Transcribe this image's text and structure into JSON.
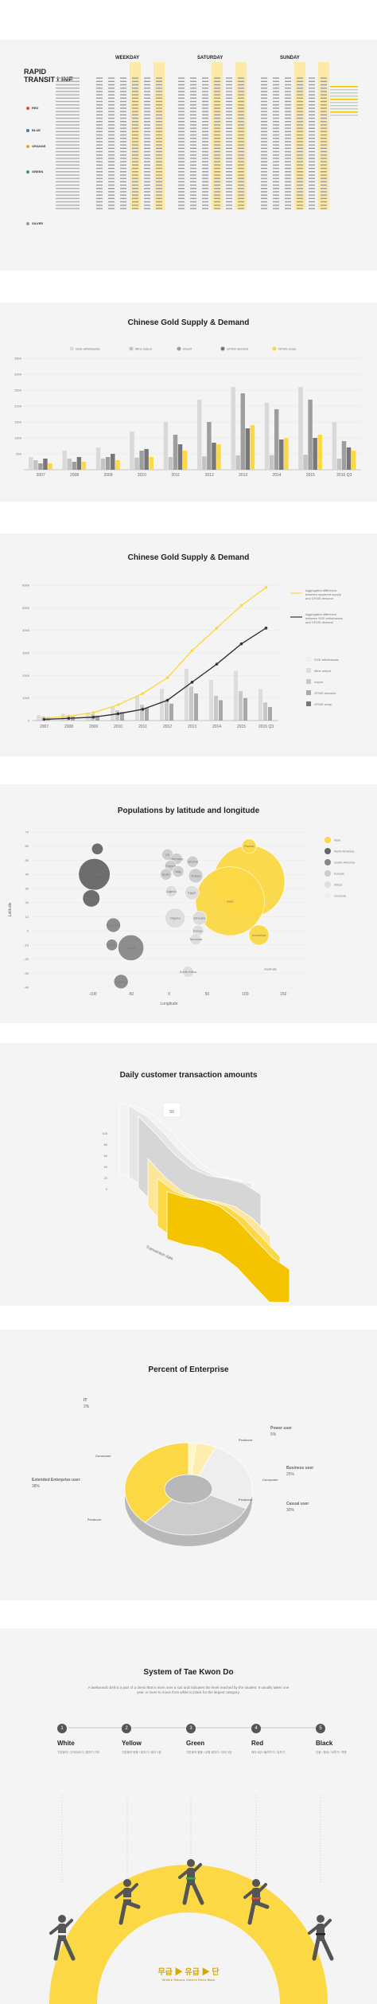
{
  "transit": {
    "title_line1": "RAPID",
    "title_line2": "TRANSIT LINE",
    "day_headers": [
      "WEEKDAY",
      "SATURDAY",
      "SUNDAY"
    ],
    "lines": [
      {
        "name": "RED",
        "color": "#e8453c"
      },
      {
        "name": "BLUE",
        "color": "#3a7bd5"
      },
      {
        "name": "ORANGE",
        "color": "#f0a030"
      },
      {
        "name": "GREEN",
        "color": "#3aa35a"
      },
      {
        "name": "SILVER",
        "color": "#999999"
      }
    ],
    "colors": {
      "highlight": "#fde9a8",
      "accent": "#f7c600"
    }
  },
  "chart1": {
    "title": "Chinese Gold Supply & Demand",
    "chart_data": {
      "type": "bar",
      "categories": [
        "2007",
        "2008",
        "2009",
        "2010",
        "2011",
        "2012",
        "2013",
        "2014",
        "2015",
        "2016 Q3"
      ],
      "ylim": [
        0,
        3500
      ],
      "yticks": [
        "3500",
        "3000",
        "2500",
        "2000",
        "1500",
        "1000",
        "500"
      ],
      "legend": [
        "SGE withdrawals",
        "Mine output",
        "Import",
        "GFMS demand",
        "GFMS scrap"
      ],
      "colors": [
        "#d9d9d9",
        "#c4c4c4",
        "#9e9e9e",
        "#777777",
        "#fcd844"
      ],
      "series": [
        {
          "name": "SGE withdrawals",
          "values": [
            400,
            600,
            700,
            1200,
            1500,
            2200,
            2600,
            2100,
            2600,
            1500
          ]
        },
        {
          "name": "Mine output",
          "values": [
            300,
            350,
            350,
            380,
            400,
            420,
            450,
            460,
            470,
            350
          ]
        },
        {
          "name": "Import",
          "values": [
            200,
            250,
            400,
            600,
            1100,
            1500,
            2400,
            1900,
            2200,
            900
          ]
        },
        {
          "name": "GFMS demand",
          "values": [
            350,
            400,
            500,
            650,
            800,
            850,
            1300,
            950,
            1000,
            700
          ]
        },
        {
          "name": "GFMS scrap",
          "values": [
            200,
            250,
            300,
            400,
            600,
            800,
            1400,
            1000,
            1100,
            600
          ]
        }
      ]
    }
  },
  "chart2": {
    "title": "Chinese Gold Supply & Demand",
    "chart_data": {
      "type": "line",
      "categories": [
        "2007",
        "2008",
        "2009",
        "2010",
        "2011",
        "2012",
        "2013",
        "2014",
        "2015",
        "2016 Q3"
      ],
      "ylim": [
        0,
        6000
      ],
      "yticks": [
        "6000",
        "5000",
        "4000",
        "3000",
        "2000",
        "1000",
        "0"
      ],
      "annotations": [
        "Aggregated difference between apparent supply and GFMS demand",
        "Aggregated difference between SGE withdrawals and GFMS demand"
      ],
      "legend": [
        "SGE withdrawals",
        "Mine output",
        "Import",
        "GFMS demand",
        "GFMS scrap"
      ],
      "series": [
        {
          "values": [
            100,
            200,
            350,
            700,
            1200,
            1900,
            3100,
            4100,
            5100,
            5900
          ]
        },
        {
          "values": [
            50,
            100,
            150,
            300,
            500,
            900,
            1700,
            2500,
            3400,
            4100
          ]
        }
      ],
      "bars": [
        {
          "values": [
            250,
            300,
            350,
            600,
            1100,
            1400,
            2300,
            1800,
            2200,
            1400
          ]
        },
        {
          "values": [
            180,
            220,
            280,
            450,
            700,
            900,
            1500,
            1100,
            1300,
            800
          ]
        },
        {
          "values": [
            150,
            180,
            220,
            380,
            550,
            750,
            1200,
            900,
            1000,
            600
          ]
        }
      ]
    }
  },
  "chart3": {
    "title": "Populations by latitude and longitude",
    "chart_data": {
      "type": "scatter",
      "xlim": [
        -180,
        180
      ],
      "ylim": [
        -40,
        70
      ],
      "xticks": [
        "-100",
        "-50",
        "0",
        "50",
        "100",
        "150"
      ],
      "yticks": [
        "70",
        "60",
        "50",
        "40",
        "30",
        "20",
        "10",
        "0",
        "-10",
        "-20",
        "-30",
        "-40"
      ],
      "xlabel": "Longitude",
      "ylabel": "Latitude",
      "legend": [
        "Asia",
        "North America",
        "South America",
        "Europe",
        "Africa",
        "Oceania"
      ],
      "legend_colors": [
        "#fcd844",
        "#666666",
        "#888888",
        "#cccccc",
        "#dddddd",
        "#eeeeee"
      ],
      "points": [
        {
          "label": "Russia",
          "x": 105,
          "y": 60,
          "r": 5,
          "group": "Asia"
        },
        {
          "label": "China",
          "x": 105,
          "y": 35,
          "r": 25,
          "group": "Asia"
        },
        {
          "label": "India",
          "x": 80,
          "y": 21,
          "r": 24,
          "group": "Asia"
        },
        {
          "label": "Indonesia",
          "x": 118,
          "y": -3,
          "r": 7,
          "group": "Asia"
        },
        {
          "label": "Australia",
          "x": 133,
          "y": -27,
          "r": 1,
          "group": "Oceania"
        },
        {
          "label": "United States",
          "x": -98,
          "y": 40,
          "r": 11,
          "group": "North America"
        },
        {
          "label": "Canada",
          "x": -94,
          "y": 58,
          "r": 4,
          "group": "North America"
        },
        {
          "label": "Mexico",
          "x": -102,
          "y": 23,
          "r": 6,
          "group": "North America"
        },
        {
          "label": "Colombia",
          "x": -73,
          "y": 4,
          "r": 5,
          "group": "South America"
        },
        {
          "label": "Peru",
          "x": -75,
          "y": -10,
          "r": 4,
          "group": "South America"
        },
        {
          "label": "Brazil",
          "x": -50,
          "y": -12,
          "r": 9,
          "group": "South America"
        },
        {
          "label": "Argentina",
          "x": -63,
          "y": -36,
          "r": 5,
          "group": "South America"
        },
        {
          "label": "UK",
          "x": -2,
          "y": 54,
          "r": 4,
          "group": "Europe"
        },
        {
          "label": "Germany",
          "x": 10,
          "y": 51,
          "r": 4,
          "group": "Europe"
        },
        {
          "label": "Ukraine",
          "x": 31,
          "y": 49,
          "r": 4,
          "group": "Europe"
        },
        {
          "label": "France",
          "x": 2,
          "y": 46,
          "r": 4,
          "group": "Europe"
        },
        {
          "label": "Italy",
          "x": 12,
          "y": 42,
          "r": 4,
          "group": "Europe"
        },
        {
          "label": "Spain",
          "x": -4,
          "y": 40,
          "r": 4,
          "group": "Europe"
        },
        {
          "label": "Turkey",
          "x": 35,
          "y": 39,
          "r": 5,
          "group": "Europe"
        },
        {
          "label": "Algeria",
          "x": 3,
          "y": 28,
          "r": 4,
          "group": "Africa"
        },
        {
          "label": "Egypt",
          "x": 30,
          "y": 27,
          "r": 5,
          "group": "Africa"
        },
        {
          "label": "Nigeria",
          "x": 8,
          "y": 9,
          "r": 7,
          "group": "Africa"
        },
        {
          "label": "Ethiopia",
          "x": 40,
          "y": 9,
          "r": 5,
          "group": "Africa"
        },
        {
          "label": "Kenya",
          "x": 38,
          "y": 0,
          "r": 4,
          "group": "Africa"
        },
        {
          "label": "Tanzania",
          "x": 35,
          "y": -6,
          "r": 4,
          "group": "Africa"
        },
        {
          "label": "South Africa",
          "x": 25,
          "y": -29,
          "r": 4,
          "group": "Africa"
        }
      ]
    }
  },
  "chart4": {
    "title": "Daily customer transaction amounts",
    "chart_data": {
      "type": "area",
      "xlabel": "Transaction date",
      "badge": "50",
      "yticks": [
        "100",
        "80",
        "60",
        "40",
        "20",
        "0"
      ],
      "series_count": 6
    }
  },
  "chart5": {
    "title": "Percent of Enterprise",
    "chart_data": {
      "type": "pie",
      "segments": [
        {
          "label": "IT",
          "pct": "2%",
          "value": 2
        },
        {
          "label": "Power user",
          "pct": "5%",
          "value": 5
        },
        {
          "label": "Business user",
          "pct": "25%",
          "value": 25
        },
        {
          "label": "Casual user",
          "pct": "30%",
          "value": 30
        },
        {
          "label": "Extended Enterprise user",
          "pct": "38%",
          "value": 38
        }
      ],
      "sub_labels": [
        "Consumer",
        "Producer",
        "Consumer",
        "Producer",
        "Producer"
      ]
    }
  },
  "tkd": {
    "title": "System of Tae Kwon Do",
    "intro": "A taekwondo belt is a part of a dress that is worn over a suit and indicates the level reached by the student. It usually takes one year or more to move from white to black for the largest category.",
    "belts": [
      {
        "num": "1",
        "name": "White",
        "desc": "기본동작 / 주먹지르기 / 발차기 기초"
      },
      {
        "num": "2",
        "name": "Yellow",
        "desc": "기본동작 응용 / 발차기 / 태극 1장"
      },
      {
        "num": "3",
        "name": "Green",
        "desc": "기본동작 응용 / 수평 발차기 / 태극 3장"
      },
      {
        "num": "4",
        "name": "Red",
        "desc": "태극 6장 / 돌려차기 / 뒤차기"
      },
      {
        "num": "5",
        "name": "Black",
        "desc": "단증 / 품새 / 겨루기 / 격파"
      }
    ],
    "footer_main": "무급 ▶ 유급 ▶ 단",
    "footer_sub": "White ▸ Yellow ▸ Green ▸ Red ▸ Black"
  }
}
